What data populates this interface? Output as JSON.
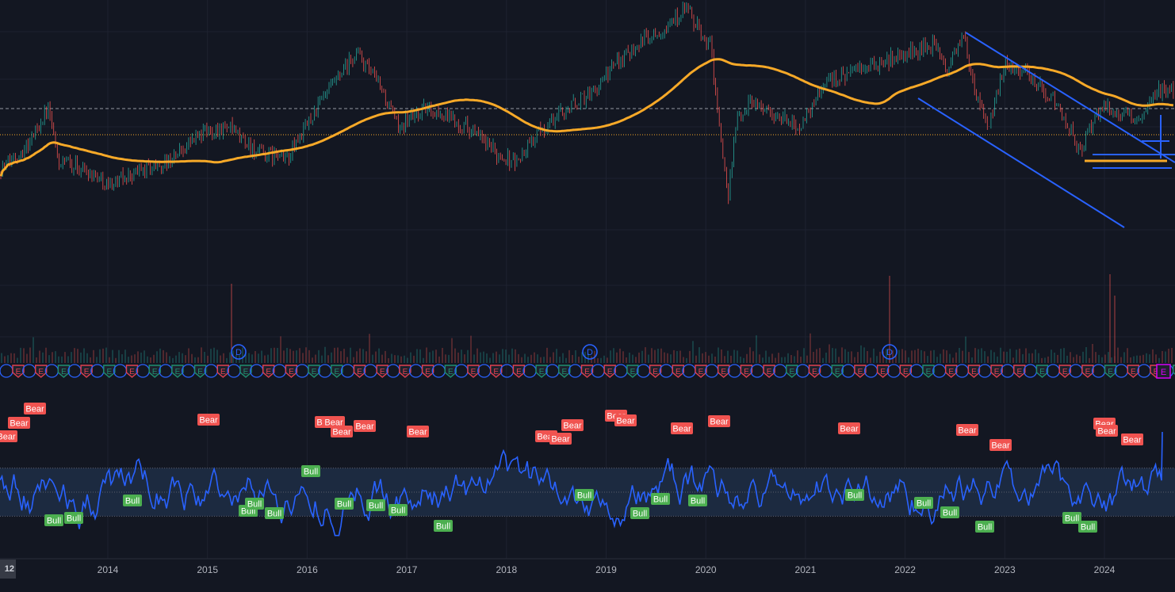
{
  "colors": {
    "background": "#131722",
    "grid": "#1e2230",
    "up": "#26a69a",
    "down": "#ef5350",
    "ma": "#f7a928",
    "trendline": "#2962ff",
    "osc_line": "#2962ff",
    "osc_band": "#1c2a40",
    "bull_label": "#4caf50",
    "bear_label": "#f05350",
    "axis_text": "#b2b5be",
    "dividend": "#2962ff"
  },
  "icons": {
    "earnings": "E-shield-icon",
    "dividend": "D-circle-icon"
  },
  "corner_label": "12",
  "x_axis": {
    "labels": [
      "2014",
      "2015",
      "2016",
      "2017",
      "2018",
      "2019",
      "2020",
      "2021",
      "2022",
      "2023",
      "2024"
    ]
  },
  "chart_data": {
    "type": "line",
    "x_ticks": [
      "2014",
      "2015",
      "2016",
      "2017",
      "2018",
      "2019",
      "2020",
      "2021",
      "2022",
      "2023",
      "2024"
    ],
    "price_panel": {
      "series": [
        {
          "x": [
            2012.9,
            2013.2,
            2013.4,
            2013.5,
            2013.7,
            2013.9,
            2014.0,
            2014.3,
            2014.6,
            2014.9,
            2015.2,
            2015.5,
            2015.8,
            2016.1,
            2016.3,
            2016.5,
            2016.75,
            2016.9,
            2017.2,
            2017.4,
            2017.6,
            2017.9,
            2018.1,
            2018.3,
            2018.6,
            2018.9,
            2019.1,
            2019.3,
            2019.6,
            2019.8,
            2019.95,
            2020.05,
            2020.18,
            2020.22,
            2020.3,
            2020.45,
            2020.7,
            2020.95,
            2021.2,
            2021.5,
            2021.8,
            2022.0,
            2022.3,
            2022.4,
            2022.6,
            2022.7,
            2022.85,
            2023.0,
            2023.2,
            2023.4,
            2023.6,
            2023.75,
            2023.85,
            2024.0,
            2024.2,
            2024.4,
            2024.55
          ],
          "y": [
            90,
            120,
            160,
            100,
            95,
            85,
            75,
            90,
            100,
            130,
            140,
            110,
            105,
            160,
            190,
            220,
            180,
            140,
            160,
            150,
            140,
            110,
            100,
            130,
            160,
            180,
            210,
            230,
            250,
            270,
            240,
            230,
            90,
            60,
            140,
            170,
            150,
            140,
            190,
            200,
            210,
            220,
            230,
            200,
            240,
            170,
            140,
            210,
            200,
            180,
            150,
            110,
            135,
            165,
            150,
            150,
            180
          ]
        }
      ]
    },
    "oscillator_panel": {
      "type": "line",
      "band": [
        30,
        70
      ],
      "labels": [
        {
          "text": "Bear"
        },
        {
          "text": "Bear"
        },
        {
          "text": "Bear"
        },
        {
          "text": "Bear"
        },
        {
          "text": "Bear"
        },
        {
          "text": "Bear"
        },
        {
          "text": "Bear"
        },
        {
          "text": "Bear"
        },
        {
          "text": "Bear"
        },
        {
          "text": "Bear"
        },
        {
          "text": "Bear"
        },
        {
          "text": "Bear"
        },
        {
          "text": "Bear"
        },
        {
          "text": "Bear"
        },
        {
          "text": "Bear"
        },
        {
          "text": "Bear"
        },
        {
          "text": "Bear"
        },
        {
          "text": "Bear"
        },
        {
          "text": "Bear"
        },
        {
          "text": "Bear"
        },
        {
          "text": "Bear"
        },
        {
          "text": "Bear"
        },
        {
          "text": "Bear"
        },
        {
          "text": "Bull"
        },
        {
          "text": "Bull"
        },
        {
          "text": "Bull"
        },
        {
          "text": "Bull"
        },
        {
          "text": "Bull"
        },
        {
          "text": "Bull"
        },
        {
          "text": "Bull"
        },
        {
          "text": "Bull"
        },
        {
          "text": "Bull"
        },
        {
          "text": "Bull"
        },
        {
          "text": "Bull"
        },
        {
          "text": "Bull"
        },
        {
          "text": "Bull"
        },
        {
          "text": "Bull"
        },
        {
          "text": "Bull"
        },
        {
          "text": "Bull"
        },
        {
          "text": "Bull"
        },
        {
          "text": "Bull"
        },
        {
          "text": "Bull"
        },
        {
          "text": "Bull"
        },
        {
          "text": "Bull"
        }
      ]
    },
    "dividend_markers": [
      {
        "text": "D"
      },
      {
        "text": "D"
      },
      {
        "text": "D"
      }
    ],
    "earnings_markers": 52
  }
}
